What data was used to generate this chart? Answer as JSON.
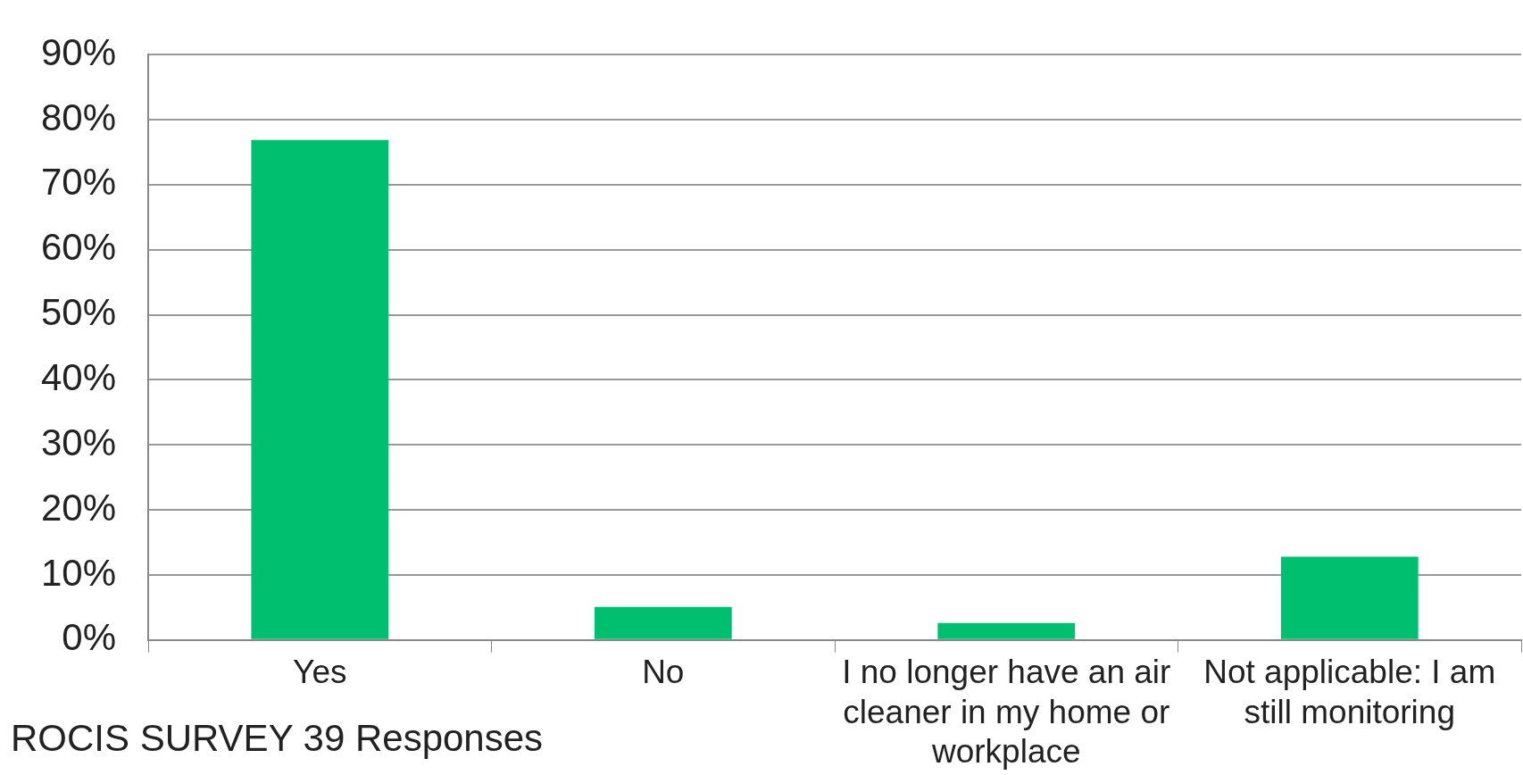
{
  "chart_data": {
    "type": "bar",
    "categories": [
      "Yes",
      "No",
      "I no longer have an air cleaner in my home or workplace",
      "Not applicable: I am still monitoring"
    ],
    "values": [
      76.9,
      5.1,
      2.6,
      12.8
    ],
    "color": "#00bf6f",
    "ylim": [
      0,
      90
    ],
    "yticks": [
      {
        "value": 0,
        "label": "0%"
      },
      {
        "value": 10,
        "label": "10%"
      },
      {
        "value": 20,
        "label": "20%"
      },
      {
        "value": 30,
        "label": "30%"
      },
      {
        "value": 40,
        "label": "40%"
      },
      {
        "value": 50,
        "label": "50%"
      },
      {
        "value": 60,
        "label": "60%"
      },
      {
        "value": 70,
        "label": "70%"
      },
      {
        "value": 80,
        "label": "80%"
      },
      {
        "value": 90,
        "label": "90%"
      }
    ],
    "grid": "y",
    "legend": false,
    "annotations": [
      "ROCIS SURVEY 39 Responses"
    ]
  }
}
